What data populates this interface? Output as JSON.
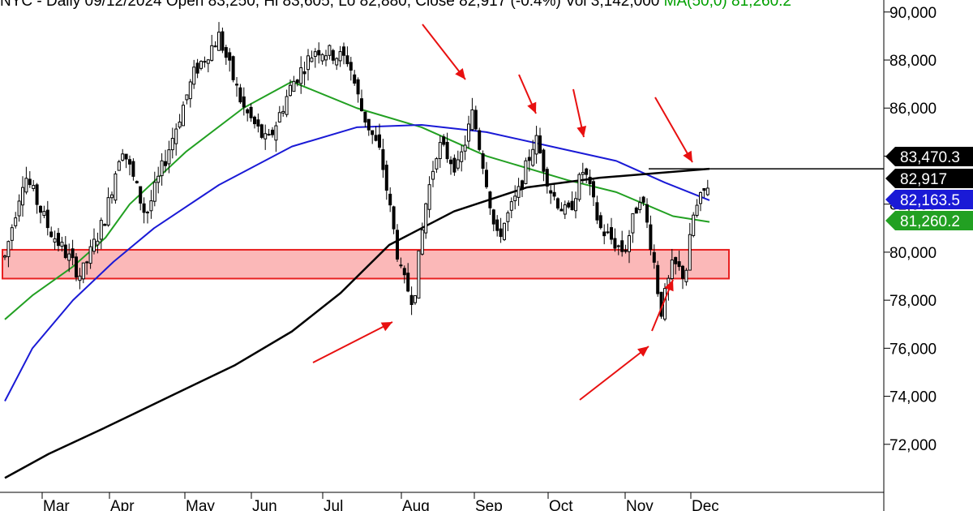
{
  "header": {
    "symbol": "NYC",
    "text": "Daily 09/12/2024 Open 83,250, Hi 83,605, Lo 82,880, Close 82,917 (-0.4%) Vol 3,142,000",
    "ma_text": "MA(50,0) 81,260.2"
  },
  "colors": {
    "candle": "#000000",
    "ma50": "#22a022",
    "ma100": "#1a1ad6",
    "ma200": "#000000",
    "zone_fill": "#fbb8b8",
    "zone_stroke": "#e82020",
    "arrow": "#e81010",
    "axis": "#000000",
    "grid": "#b8b8b8"
  },
  "chart_data": {
    "type": "candlestick",
    "title": "",
    "xlabel": "",
    "ylabel": "",
    "ylim": [
      70000,
      90500
    ],
    "y_ticks": [
      "72,000",
      "74,000",
      "76,000",
      "78,000",
      "80,000",
      "82,000",
      "84,000",
      "86,000",
      "88,000",
      "90,000"
    ],
    "x_tick_labels": [
      "Mar",
      "Apr",
      "May",
      "Jun",
      "Jul",
      "Aug",
      "Sep",
      "Oct",
      "Nov",
      "Dec"
    ],
    "grid": true,
    "support_zone": [
      78900,
      80100
    ],
    "resistance_level": 83470,
    "price_labels": [
      {
        "text": "83,470.3",
        "color": "#000000"
      },
      {
        "text": "82,917",
        "color": "#000000"
      },
      {
        "text": "82,163.5",
        "color": "#1a1ad6"
      },
      {
        "text": "81,260.2",
        "color": "#22a022"
      }
    ],
    "series": [
      {
        "name": "MA 50",
        "color": "#22a022",
        "values": [
          77200,
          78200,
          79400,
          80600,
          82000,
          84200,
          86000,
          87100,
          86000,
          85200,
          84000,
          83000,
          82500,
          81500,
          81260
        ]
      },
      {
        "name": "MA 100",
        "color": "#1a1ad6",
        "values": [
          73800,
          76000,
          78000,
          79600,
          81000,
          82800,
          84400,
          85200,
          85300,
          85000,
          84400,
          83800,
          82900,
          82160
        ]
      },
      {
        "name": "MA 200",
        "color": "#000000",
        "values": [
          70600,
          71600,
          72700,
          74000,
          75300,
          76700,
          78300,
          80300,
          81700,
          82700,
          83100,
          83470
        ]
      }
    ],
    "candles_summary": "daily OHLC from late Feb to mid Dec; peak near 89,500 in May, lows near 76,000 in Nov, last close 82,917"
  }
}
